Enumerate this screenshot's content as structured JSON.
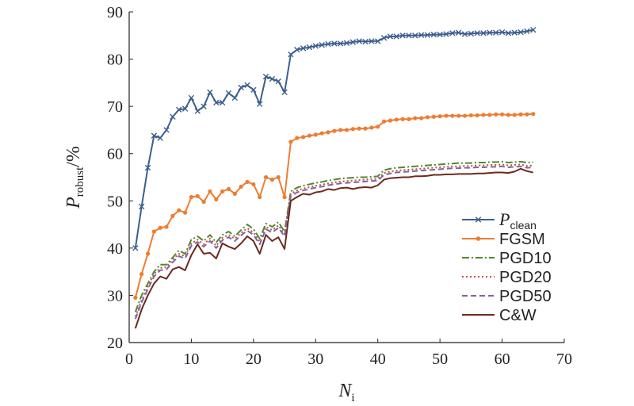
{
  "chart_data": {
    "type": "line",
    "title": "",
    "xlabel": {
      "main": "N",
      "sub": "i"
    },
    "ylabel": {
      "main": "P",
      "sub": "robust",
      "suffix": "/%"
    },
    "xlim": [
      0,
      70
    ],
    "ylim": [
      20,
      90
    ],
    "xticks": [
      0,
      10,
      20,
      30,
      40,
      50,
      60,
      70
    ],
    "yticks": [
      20,
      30,
      40,
      50,
      60,
      70,
      80,
      90
    ],
    "grid": false,
    "legend_position": "lower-right",
    "x": [
      1,
      2,
      3,
      4,
      5,
      6,
      7,
      8,
      9,
      10,
      11,
      12,
      13,
      14,
      15,
      16,
      17,
      18,
      19,
      20,
      21,
      22,
      23,
      24,
      25,
      26,
      27,
      28,
      29,
      30,
      31,
      32,
      33,
      34,
      35,
      36,
      37,
      38,
      39,
      40,
      41,
      42,
      43,
      44,
      45,
      46,
      47,
      48,
      49,
      50,
      51,
      52,
      53,
      54,
      55,
      56,
      57,
      58,
      59,
      60,
      61,
      62,
      63,
      64,
      65
    ],
    "series": [
      {
        "name": "P",
        "name_sub": "clean",
        "color": "#3d5f8f",
        "dash": "",
        "marker": "x",
        "values": [
          40,
          48.8,
          57,
          63.8,
          63.3,
          65,
          67.8,
          69.3,
          69.5,
          71.8,
          69,
          70,
          73,
          70.8,
          70.8,
          72.8,
          71.8,
          74,
          74.5,
          73.5,
          70.5,
          76.3,
          75.8,
          75.3,
          73,
          81,
          82,
          82.3,
          82.5,
          82.8,
          83,
          83.2,
          83.3,
          83.3,
          83.4,
          83.6,
          83.8,
          83.7,
          83.8,
          83.8,
          84.5,
          84.8,
          84.8,
          85,
          85,
          85,
          85.1,
          85.1,
          85.2,
          85.2,
          85.3,
          85.5,
          85.6,
          85.3,
          85.4,
          85.5,
          85.5,
          85.6,
          85.6,
          85.7,
          85.5,
          85.6,
          85.7,
          85.9,
          86.2
        ]
      },
      {
        "name": "FGSM",
        "color": "#ed7d31",
        "dash": "",
        "marker": "dot",
        "values": [
          29.5,
          34.5,
          38.8,
          43.5,
          44.3,
          44.5,
          46.8,
          48,
          47.5,
          50.8,
          51,
          49.8,
          52,
          50.3,
          52,
          52.5,
          51.5,
          53,
          54,
          53.5,
          50.8,
          55,
          54.5,
          55,
          50.8,
          62.5,
          63.3,
          63.5,
          63.8,
          64,
          64.3,
          64.5,
          64.8,
          65,
          65,
          65.2,
          65.3,
          65.3,
          65.5,
          65.7,
          66.8,
          67,
          67.2,
          67.3,
          67.3,
          67.5,
          67.5,
          67.7,
          67.8,
          67.9,
          68,
          68,
          68,
          68,
          68.1,
          68.1,
          68.2,
          68.2,
          68.3,
          68.3,
          68.2,
          68.2,
          68.3,
          68.3,
          68.4
        ]
      },
      {
        "name": "PGD10",
        "color": "#4e8a2e",
        "dash": "9 3 2 3",
        "marker": "none",
        "values": [
          26.5,
          30,
          32.5,
          35,
          36.5,
          36.5,
          38,
          39.5,
          38.8,
          41.8,
          42.5,
          41.5,
          42.8,
          41.2,
          42.8,
          43.5,
          42.5,
          43.8,
          45,
          44,
          42,
          45.2,
          44.5,
          45.5,
          43.5,
          52,
          52.8,
          53.2,
          53.5,
          53.8,
          54,
          54.3,
          54.5,
          54.7,
          54.8,
          54.9,
          55,
          55,
          55.1,
          55.2,
          56.5,
          56.8,
          57,
          57.1,
          57.2,
          57.3,
          57.4,
          57.5,
          57.6,
          57.7,
          57.8,
          57.9,
          58,
          58,
          58,
          58.1,
          58.1,
          58.2,
          58.2,
          58.3,
          58.1,
          58.2,
          58.3,
          58.1,
          58.2
        ]
      },
      {
        "name": "PGD20",
        "color": "#c0504d",
        "dash": "2 3",
        "marker": "none",
        "values": [
          25.5,
          29,
          31.8,
          34.5,
          35.8,
          36,
          37.5,
          38.8,
          38.3,
          41,
          41.8,
          40.8,
          42,
          40.5,
          42.2,
          42.8,
          42,
          43.2,
          44.2,
          43.3,
          41.3,
          44.5,
          43.8,
          44.8,
          43,
          51.5,
          52.2,
          52.6,
          52.9,
          53.2,
          53.4,
          53.7,
          53.9,
          54.1,
          54.2,
          54.3,
          54.4,
          54.5,
          54.6,
          54.7,
          55.9,
          56.2,
          56.4,
          56.5,
          56.6,
          56.7,
          56.8,
          56.9,
          57,
          57.1,
          57.2,
          57.3,
          57.3,
          57.4,
          57.4,
          57.5,
          57.5,
          57.6,
          57.6,
          57.7,
          57.5,
          57.6,
          57.7,
          57.4,
          57.5
        ]
      },
      {
        "name": "PGD50",
        "color": "#8064a2",
        "dash": "7 4",
        "marker": "none",
        "values": [
          25,
          28.5,
          31.3,
          34,
          35.3,
          35.5,
          37,
          38.3,
          37.8,
          40.5,
          41.3,
          40.3,
          41.5,
          40,
          41.7,
          42.3,
          41.5,
          42.7,
          43.7,
          42.8,
          40.8,
          44,
          43.3,
          44.3,
          42.5,
          51,
          51.8,
          52.2,
          52.5,
          52.8,
          53,
          53.3,
          53.5,
          53.7,
          53.8,
          53.9,
          54,
          54.1,
          54.2,
          54.3,
          55.5,
          55.8,
          56,
          56.1,
          56.2,
          56.3,
          56.4,
          56.5,
          56.6,
          56.7,
          56.8,
          56.9,
          56.9,
          57,
          57,
          57.1,
          57.1,
          57.2,
          57.2,
          57.3,
          57.1,
          57.2,
          57.3,
          57,
          57.1
        ]
      },
      {
        "name": "C&W",
        "color": "#6b2a1f",
        "dash": "",
        "marker": "none",
        "values": [
          23,
          27,
          30,
          32.5,
          34,
          33.5,
          35.5,
          36,
          35.3,
          38.5,
          40.8,
          38.8,
          39,
          37.8,
          41,
          40.3,
          39.8,
          41,
          42.5,
          41.5,
          38.8,
          42.8,
          41.5,
          42.3,
          39.8,
          50,
          50.8,
          51.5,
          51.3,
          51.8,
          52,
          52.5,
          52.3,
          52.7,
          52.8,
          52.5,
          52.8,
          52.9,
          52.8,
          53.3,
          54.5,
          54.8,
          54.9,
          55,
          55,
          55.2,
          55.2,
          55.3,
          55.5,
          55.5,
          55.6,
          55.6,
          55.7,
          55.7,
          55.7,
          55.8,
          55.8,
          55.9,
          56,
          56,
          55.9,
          56.2,
          56.8,
          56.3,
          56
        ]
      }
    ]
  }
}
